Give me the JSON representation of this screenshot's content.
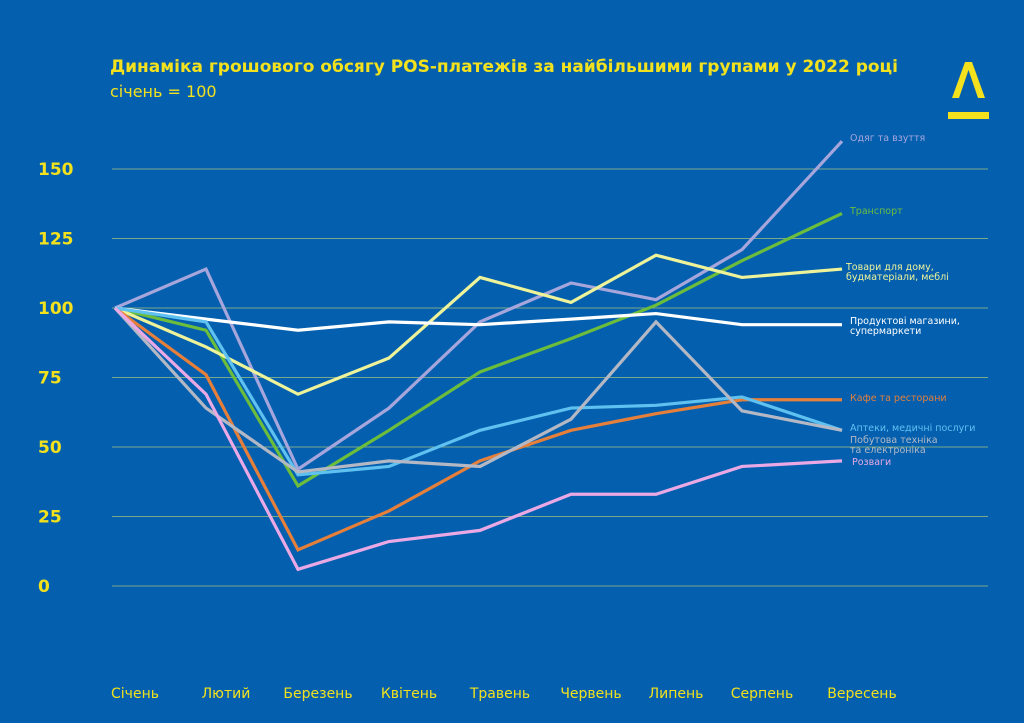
{
  "chart_data": {
    "type": "line",
    "title": "Динаміка грошового обсягу POS-платежів за найбільшими групами у 2022 році",
    "subtitle": "січень = 100",
    "xlabel": "",
    "ylabel": "",
    "ylim": [
      0,
      150
    ],
    "yticks": [
      0,
      25,
      50,
      75,
      100,
      125,
      150
    ],
    "grid": true,
    "legend": "inline-right",
    "categories": [
      "Січень",
      "Лютий",
      "Березень",
      "Квітень",
      "Травень",
      "Червень",
      "Липень",
      "Серпень",
      "Вересень"
    ],
    "series": [
      {
        "name": "Одяг та взуття",
        "color": "#a7a6dc",
        "values": [
          100,
          114,
          42,
          64,
          95,
          109,
          103,
          121,
          160
        ]
      },
      {
        "name": "Транспорт",
        "color": "#6cbd3c",
        "values": [
          100,
          92,
          36,
          56,
          77,
          89,
          101,
          117,
          134
        ]
      },
      {
        "name": "Товари для дому, будматеріали, меблі",
        "color": "#eef39a",
        "values": [
          100,
          86,
          69,
          82,
          111,
          102,
          119,
          111,
          114
        ]
      },
      {
        "name": "Продуктові магазини, супермаркети",
        "color": "#ffffff",
        "values": [
          100,
          96,
          92,
          95,
          94,
          96,
          98,
          94,
          94
        ]
      },
      {
        "name": "Кафе та ресторани",
        "color": "#e57f3a",
        "values": [
          100,
          76,
          13,
          27,
          45,
          56,
          62,
          67,
          67
        ]
      },
      {
        "name": "Аптеки, медичні послуги",
        "color": "#5ec1f0",
        "values": [
          100,
          95,
          40,
          43,
          56,
          64,
          65,
          68,
          56
        ]
      },
      {
        "name": "Побутова техніка та електроніка",
        "color": "#b4b8c4",
        "values": [
          100,
          64,
          41,
          45,
          43,
          60,
          95,
          63,
          56
        ]
      },
      {
        "name": "Розваги",
        "color": "#eaa8e4",
        "values": [
          100,
          69,
          6,
          16,
          20,
          33,
          33,
          43,
          45
        ]
      }
    ]
  },
  "logo": {
    "text": "А"
  },
  "colors": {
    "background": "#0460af",
    "accent": "#f2e11c",
    "grid": "#7aa88a"
  }
}
